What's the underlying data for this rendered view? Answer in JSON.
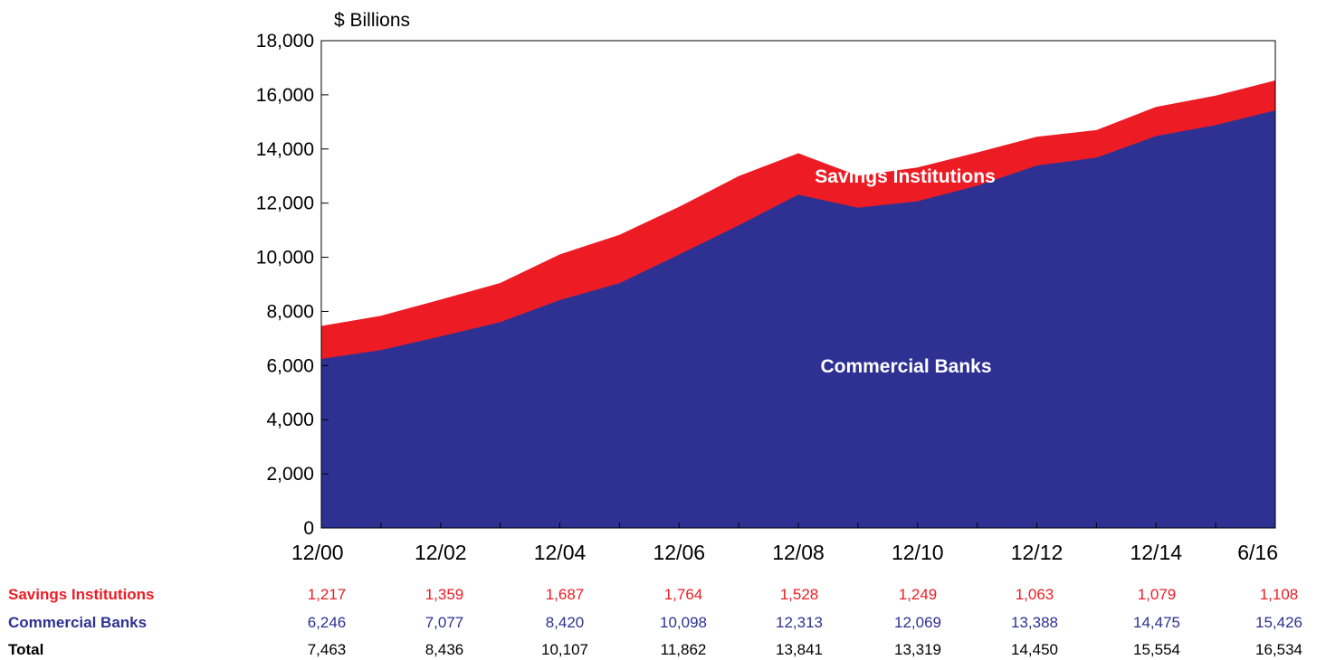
{
  "chart_data": {
    "type": "area",
    "stacked": true,
    "y_unit_label": "$ Billions",
    "ylim": [
      0,
      18000
    ],
    "y_ticks": [
      "0",
      "2,000",
      "4,000",
      "6,000",
      "8,000",
      "10,000",
      "12,000",
      "14,000",
      "16,000",
      "18,000"
    ],
    "x_tick_labels": [
      "12/00",
      "12/02",
      "12/04",
      "12/06",
      "12/08",
      "12/10",
      "12/12",
      "12/14",
      "6/16"
    ],
    "periods": [
      "12/00",
      "12/01",
      "12/02",
      "12/03",
      "12/04",
      "12/05",
      "12/06",
      "12/07",
      "12/08",
      "12/09",
      "12/10",
      "12/11",
      "12/12",
      "12/13",
      "12/14",
      "12/15",
      "6/16"
    ],
    "series": [
      {
        "name": "Commercial Banks",
        "color": "#2e3192",
        "values": [
          6246,
          6570,
          7077,
          7600,
          8420,
          9040,
          10098,
          11180,
          12313,
          11830,
          12069,
          12640,
          13388,
          13680,
          14475,
          14880,
          15426
        ]
      },
      {
        "name": "Savings Institutions",
        "color": "#ed1c24",
        "values": [
          1217,
          1270,
          1359,
          1450,
          1687,
          1790,
          1764,
          1820,
          1528,
          1180,
          1249,
          1230,
          1063,
          1020,
          1079,
          1090,
          1108
        ]
      }
    ],
    "area_labels": [
      "Savings Institutions",
      "Commercial Banks"
    ],
    "legend": "none",
    "grid": false
  },
  "table": {
    "periods": [
      "12/00",
      "12/02",
      "12/04",
      "12/06",
      "12/08",
      "12/10",
      "12/12",
      "12/14",
      "6/16"
    ],
    "rows": [
      {
        "label": "Savings Institutions",
        "color": "#ed1c24",
        "values": [
          "1,217",
          "1,359",
          "1,687",
          "1,764",
          "1,528",
          "1,249",
          "1,063",
          "1,079",
          "1,108"
        ]
      },
      {
        "label": "Commercial Banks",
        "color": "#2e3192",
        "values": [
          "6,246",
          "7,077",
          "8,420",
          "10,098",
          "12,313",
          "12,069",
          "13,388",
          "14,475",
          "15,426"
        ]
      },
      {
        "label": "Total",
        "color": "#000000",
        "values": [
          "7,463",
          "8,436",
          "10,107",
          "11,862",
          "13,841",
          "13,319",
          "14,450",
          "15,554",
          "16,534"
        ]
      }
    ]
  }
}
